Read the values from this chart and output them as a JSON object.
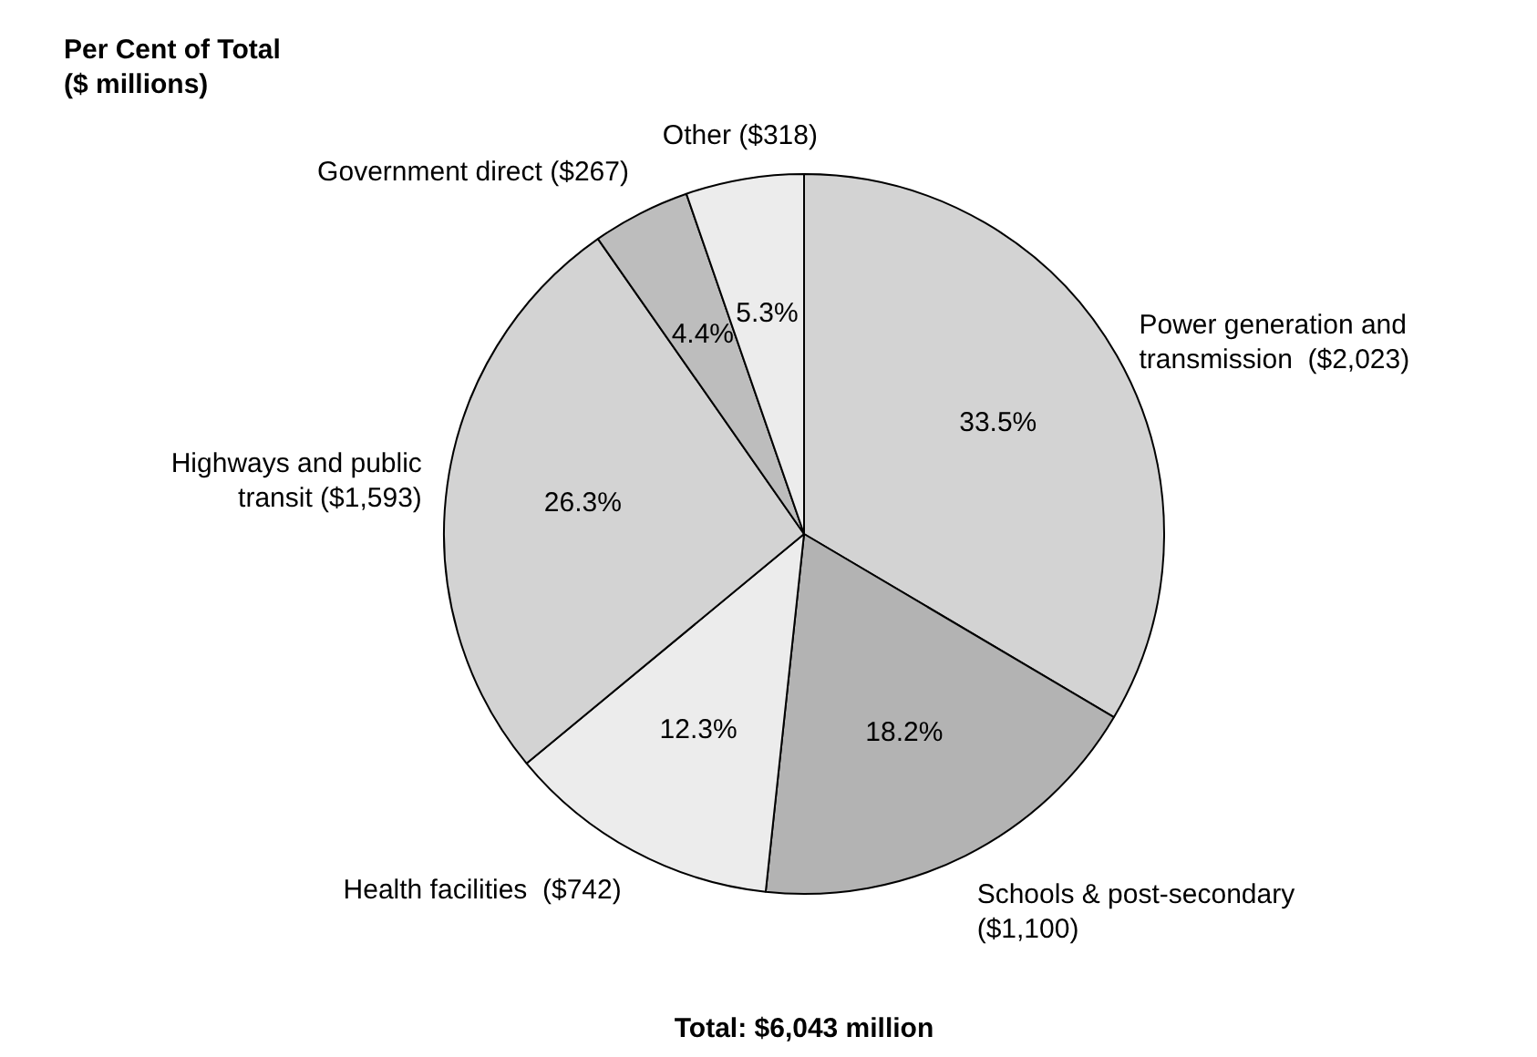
{
  "chart_data": {
    "type": "pie",
    "categories": [
      "Power generation and transmission  ($2,023)",
      "Schools & post-secondary  ($1,100)",
      "Health facilities  ($742)",
      "Highways and public transit ($1,593)",
      "Government direct ($267)",
      "Other ($318)"
    ],
    "values": [
      33.5,
      18.2,
      12.3,
      26.3,
      4.4,
      5.3
    ],
    "value_labels": [
      "33.5%",
      "18.2%",
      "12.3%",
      "26.3%",
      "4.4%",
      "5.3%"
    ],
    "colors": [
      "#d3d3d3",
      "#b3b3b3",
      "#ececec",
      "#d3d3d3",
      "#bdbdbd",
      "#ececec"
    ],
    "annotations": [
      "Per Cent of Total ($ millions)",
      "Total: $6,043 million"
    ],
    "legend": false
  }
}
